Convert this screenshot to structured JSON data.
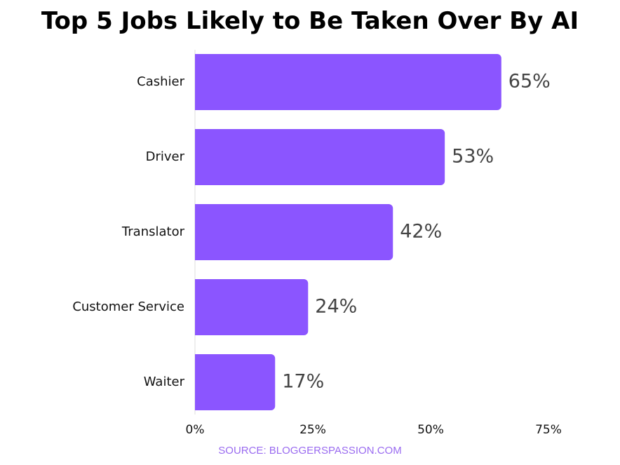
{
  "colors": {
    "bar": "#8B55FF",
    "source": "#9A6BF0",
    "axis_line": "#dddddd",
    "value_label": "#444444"
  },
  "chart_data": {
    "type": "bar",
    "orientation": "horizontal",
    "title": "Top 5 Jobs Likely to Be Taken Over By AI",
    "categories": [
      "Cashier",
      "Driver",
      "Translator",
      "Customer Service",
      "Waiter"
    ],
    "values": [
      65,
      53,
      42,
      24,
      17
    ],
    "value_labels": [
      "65%",
      "53%",
      "42%",
      "24%",
      "17%"
    ],
    "xlim": [
      0,
      75
    ],
    "x_ticks": [
      0,
      25,
      50,
      75
    ],
    "x_tick_labels": [
      "0%",
      "25%",
      "50%",
      "75%"
    ],
    "grid": false,
    "legend": "none",
    "source": "SOURCE: BLOGGERSPASSION.COM"
  }
}
